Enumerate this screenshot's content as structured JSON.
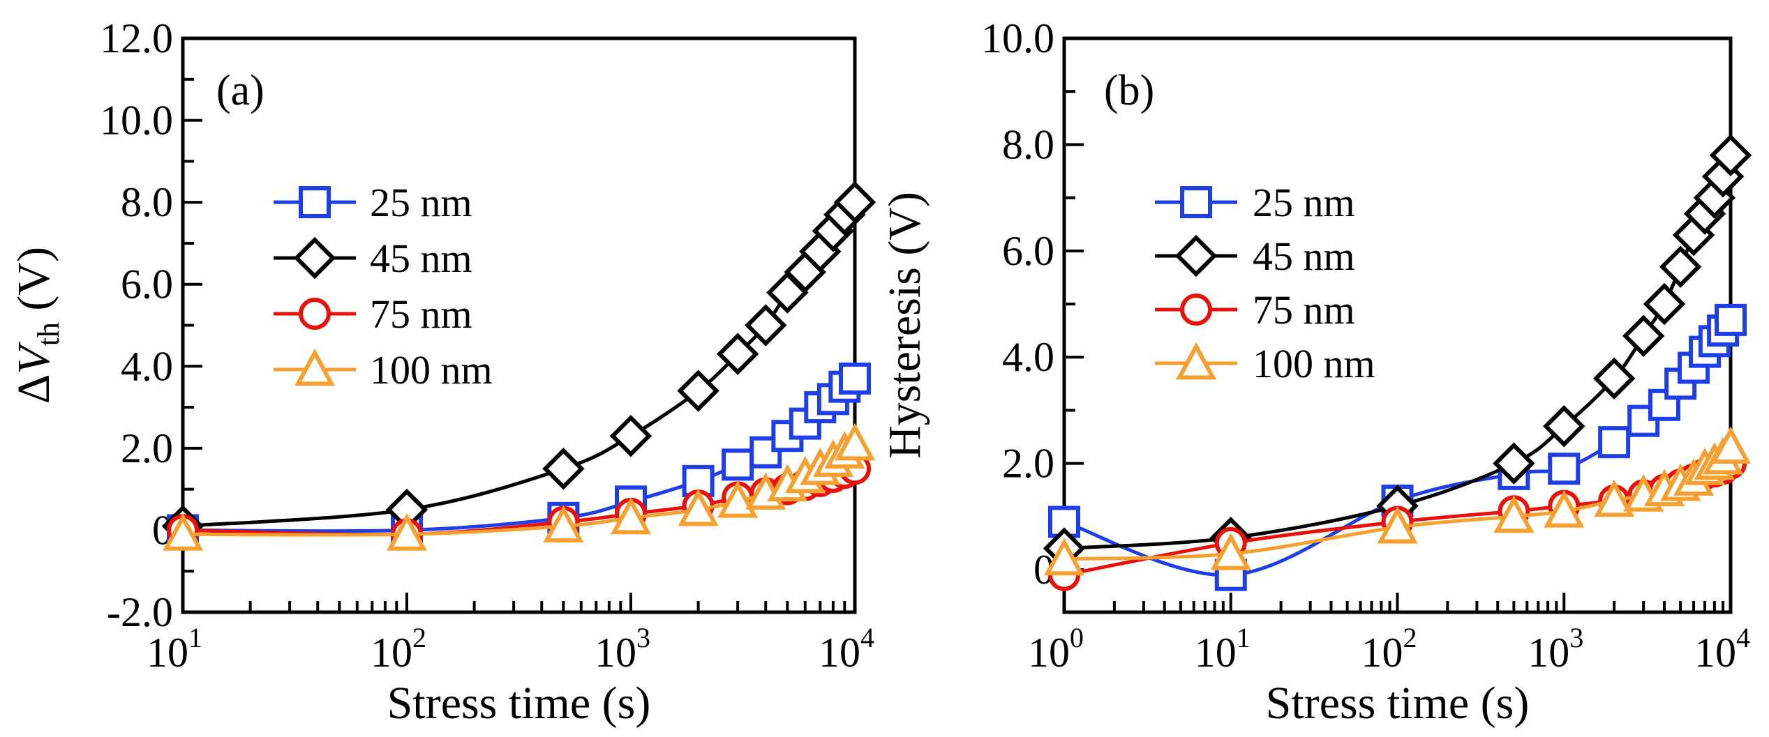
{
  "colors": {
    "25nm": "#1f3fe6",
    "45nm": "#000000",
    "75nm": "#e8120c",
    "100nm": "#f5a030"
  },
  "chart_data": [
    {
      "type": "line",
      "panel_label": "(a)",
      "xlabel": "Stress time  (s)",
      "ylabel_prefix": "ΔV",
      "ylabel_sub": "th",
      "ylabel_suffix": " (V)",
      "xscale": "log",
      "xlim": [
        10,
        10000
      ],
      "ylim": [
        -2,
        12
      ],
      "x_tick_labels": [
        {
          "base": "10",
          "exp": "1"
        },
        {
          "base": "10",
          "exp": "2"
        },
        {
          "base": "10",
          "exp": "3"
        },
        {
          "base": "10",
          "exp": "4"
        }
      ],
      "y_ticks": [
        -2,
        0,
        2,
        4,
        6,
        8,
        10,
        12
      ],
      "y_tick_labels": [
        "-2.0",
        "0",
        "2.0",
        "4.0",
        "6.0",
        "8.0",
        "10.0",
        "12.0"
      ],
      "legend_placement": "upper-left",
      "series": [
        {
          "name": "25 nm",
          "key": "25nm",
          "marker": "square",
          "x": [
            10,
            100,
            500,
            1000,
            2000,
            3000,
            4000,
            5000,
            6000,
            7000,
            8000,
            9000,
            10000
          ],
          "y": [
            0.0,
            0.0,
            0.3,
            0.7,
            1.2,
            1.6,
            1.9,
            2.3,
            2.6,
            3.0,
            3.2,
            3.5,
            3.7
          ]
        },
        {
          "name": "45 nm",
          "key": "45nm",
          "marker": "diamond",
          "x": [
            10,
            100,
            500,
            1000,
            2000,
            3000,
            4000,
            5000,
            6000,
            7000,
            8000,
            9000,
            10000
          ],
          "y": [
            0.1,
            0.5,
            1.5,
            2.3,
            3.4,
            4.3,
            5.0,
            5.8,
            6.3,
            6.8,
            7.3,
            7.7,
            8.0
          ]
        },
        {
          "name": "75 nm",
          "key": "75nm",
          "marker": "circle",
          "x": [
            10,
            100,
            500,
            1000,
            2000,
            3000,
            4000,
            5000,
            6000,
            7000,
            8000,
            9000,
            10000
          ],
          "y": [
            0.0,
            -0.1,
            0.2,
            0.4,
            0.6,
            0.8,
            0.9,
            1.0,
            1.1,
            1.2,
            1.3,
            1.4,
            1.5
          ]
        },
        {
          "name": "100 nm",
          "key": "100nm",
          "marker": "triangle",
          "x": [
            10,
            100,
            500,
            1000,
            2000,
            3000,
            4000,
            5000,
            6000,
            7000,
            8000,
            9000,
            10000
          ],
          "y": [
            -0.1,
            -0.1,
            0.1,
            0.3,
            0.5,
            0.7,
            0.9,
            1.1,
            1.3,
            1.5,
            1.7,
            1.9,
            2.1
          ]
        }
      ]
    },
    {
      "type": "line",
      "panel_label": "(b)",
      "xlabel": "Stress time  (s)",
      "ylabel": "Hysteresis (V)",
      "xscale": "log",
      "xlim": [
        1,
        10000
      ],
      "ylim": [
        -0.8,
        10
      ],
      "x_tick_labels": [
        {
          "base": "10",
          "exp": "0"
        },
        {
          "base": "10",
          "exp": "1"
        },
        {
          "base": "10",
          "exp": "2"
        },
        {
          "base": "10",
          "exp": "3"
        },
        {
          "base": "10",
          "exp": "4"
        }
      ],
      "y_ticks": [
        0,
        2,
        4,
        6,
        8,
        10
      ],
      "y_tick_labels": [
        "0",
        "2.0",
        "4.0",
        "6.0",
        "8.0",
        "10.0"
      ],
      "legend_placement": "upper-left",
      "series": [
        {
          "name": "25 nm",
          "key": "25nm",
          "marker": "square",
          "x": [
            1,
            10,
            100,
            500,
            1000,
            2000,
            3000,
            4000,
            5000,
            6000,
            7000,
            8000,
            9000,
            10000
          ],
          "y": [
            0.9,
            -0.1,
            1.3,
            1.8,
            1.9,
            2.4,
            2.8,
            3.1,
            3.5,
            3.8,
            4.1,
            4.3,
            4.5,
            4.7
          ]
        },
        {
          "name": "45 nm",
          "key": "45nm",
          "marker": "diamond",
          "x": [
            1,
            10,
            100,
            500,
            1000,
            2000,
            3000,
            4000,
            5000,
            6000,
            7000,
            8000,
            9000,
            10000
          ],
          "y": [
            0.4,
            0.6,
            1.2,
            2.0,
            2.7,
            3.6,
            4.4,
            5.0,
            5.7,
            6.3,
            6.7,
            7.0,
            7.4,
            7.8
          ]
        },
        {
          "name": "75 nm",
          "key": "75nm",
          "marker": "circle",
          "x": [
            1,
            10,
            100,
            500,
            1000,
            2000,
            3000,
            4000,
            5000,
            6000,
            7000,
            8000,
            9000,
            10000
          ],
          "y": [
            -0.1,
            0.5,
            0.9,
            1.1,
            1.2,
            1.3,
            1.4,
            1.5,
            1.6,
            1.7,
            1.8,
            1.85,
            1.9,
            2.0
          ]
        },
        {
          "name": "100 nm",
          "key": "100nm",
          "marker": "triangle",
          "x": [
            1,
            10,
            100,
            500,
            1000,
            2000,
            3000,
            4000,
            5000,
            6000,
            7000,
            8000,
            9000,
            10000
          ],
          "y": [
            0.2,
            0.3,
            0.8,
            1.0,
            1.1,
            1.3,
            1.4,
            1.5,
            1.6,
            1.7,
            1.9,
            2.0,
            2.1,
            2.3
          ]
        }
      ]
    }
  ]
}
